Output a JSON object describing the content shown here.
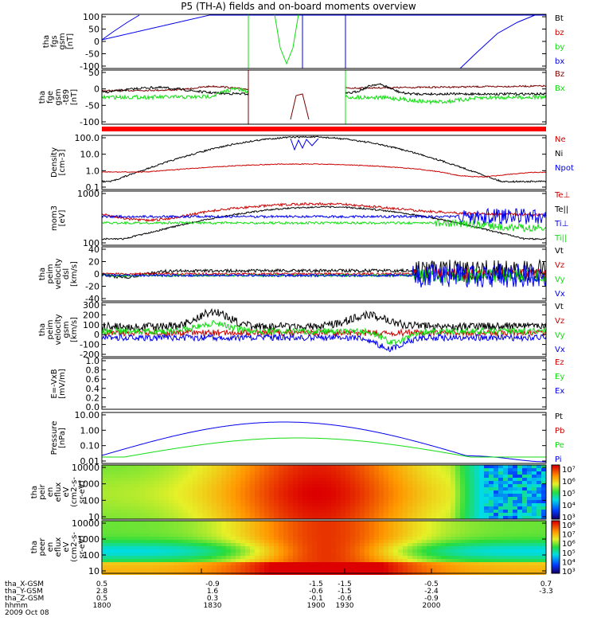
{
  "title": "P5 (TH-A) fields and on-board moments overview",
  "colors": {
    "black": "#000000",
    "red": "#cc0000",
    "green": "#11dd11",
    "blue": "#0000ee",
    "darkred": "#770000"
  },
  "chart_data": [
    {
      "panel": 1,
      "type": "line",
      "ylabel_lines": [
        "tha",
        "fgs",
        "gsm",
        "[nT]"
      ],
      "yticks": [
        "100",
        "50",
        "0",
        "-50",
        "-100"
      ],
      "ylim": [
        -100,
        100
      ],
      "legend": [
        {
          "name": "Bt",
          "color": "black"
        },
        {
          "name": "bz",
          "color": "red"
        },
        {
          "name": "by",
          "color": "green"
        },
        {
          "name": "bx",
          "color": "blue"
        }
      ]
    },
    {
      "panel": 2,
      "type": "line",
      "ylabel_lines": [
        "tha",
        "fge",
        "gsm",
        "-t89",
        "[nT]"
      ],
      "yticks": [
        "50",
        "0",
        "-50",
        "-100"
      ],
      "ylim": [
        -120,
        80
      ],
      "legend": [
        {
          "name": "Bz",
          "color": "darkred"
        },
        {
          "name": "Bx",
          "color": "green"
        }
      ]
    },
    {
      "panel": 3,
      "type": "line",
      "yscale": "log",
      "ylabel_lines": [
        "Density",
        "[cm-3]"
      ],
      "yticks": [
        "100.0",
        "10.0",
        "1.0",
        "0.1"
      ],
      "ylim": [
        0.06,
        250
      ],
      "legend": [
        {
          "name": "Ne",
          "color": "red"
        },
        {
          "name": "Ni",
          "color": "black"
        },
        {
          "name": "Npot",
          "color": "blue"
        }
      ]
    },
    {
      "panel": 4,
      "type": "line",
      "yscale": "log",
      "ylabel_lines": [
        "mom3",
        "[eV]"
      ],
      "yticks": [
        "1000",
        "100"
      ],
      "ylim": [
        100,
        1500
      ],
      "legend": [
        {
          "name": "Te⊥",
          "color": "red"
        },
        {
          "name": "Te||",
          "color": "black"
        },
        {
          "name": "Ti⊥",
          "color": "blue"
        },
        {
          "name": "Ti||",
          "color": "green"
        }
      ]
    },
    {
      "panel": 5,
      "type": "line",
      "ylabel_lines": [
        "tha",
        "peim",
        "velocity",
        "dsl",
        "[km/s]"
      ],
      "yticks": [
        "40",
        "20",
        "0",
        "-20",
        "-40"
      ],
      "ylim": [
        -40,
        40
      ],
      "legend": [
        {
          "name": "Vt",
          "color": "black"
        },
        {
          "name": "Vz",
          "color": "red"
        },
        {
          "name": "Vy",
          "color": "green"
        },
        {
          "name": "Vx",
          "color": "blue"
        }
      ]
    },
    {
      "panel": 6,
      "type": "line",
      "ylabel_lines": [
        "tha",
        "peim",
        "velocity",
        "gsm",
        "[km/s]"
      ],
      "yticks": [
        "300",
        "200",
        "100",
        "0",
        "-100",
        "-200"
      ],
      "ylim": [
        -200,
        300
      ],
      "legend": [
        {
          "name": "Vt",
          "color": "black"
        },
        {
          "name": "Vz",
          "color": "red"
        },
        {
          "name": "Vy",
          "color": "green"
        },
        {
          "name": "Vx",
          "color": "blue"
        }
      ]
    },
    {
      "panel": 7,
      "type": "line",
      "ylabel_lines": [
        "E=-VxB",
        "[mV/m]"
      ],
      "yticks": [
        "1.0",
        "0.8",
        "0.6",
        "0.4",
        "0.2",
        "0.0"
      ],
      "ylim": [
        0,
        1
      ],
      "legend": [
        {
          "name": "Ez",
          "color": "red"
        },
        {
          "name": "Ey",
          "color": "green"
        },
        {
          "name": "Ex",
          "color": "blue"
        }
      ]
    },
    {
      "panel": 8,
      "type": "line",
      "yscale": "log",
      "ylabel_lines": [
        "Pressure",
        "[nPa]"
      ],
      "yticks": [
        "10.00",
        "1.00",
        "0.10",
        "0.01"
      ],
      "ylim": [
        0.003,
        40
      ],
      "legend": [
        {
          "name": "Pt",
          "color": "black"
        },
        {
          "name": "Pb",
          "color": "red"
        },
        {
          "name": "Pe",
          "color": "green"
        },
        {
          "name": "Pi",
          "color": "blue"
        }
      ]
    },
    {
      "panel": 9,
      "type": "heatmap",
      "yscale": "log",
      "ylabel_lines": [
        "tha",
        "peir",
        "en",
        "eflux",
        "eV",
        "(cm2-s-",
        "sr-eV)"
      ],
      "yticks": [
        "10000",
        "1000",
        "100",
        "10"
      ],
      "colorbar": {
        "labels": [
          "10⁷",
          "10⁶",
          "10⁵",
          "10⁴",
          "10³"
        ]
      }
    },
    {
      "panel": 10,
      "type": "heatmap",
      "yscale": "log",
      "ylabel_lines": [
        "tha",
        "peer",
        "en",
        "eflux",
        "eV",
        "(cm2-s-",
        "sr-eV)"
      ],
      "yticks": [
        "10000",
        "1000",
        "100",
        "10"
      ],
      "colorbar": {
        "labels": [
          "10⁸",
          "10⁷",
          "10⁶",
          "10⁵",
          "10⁴",
          "10³"
        ]
      }
    }
  ],
  "xaxis": {
    "rows": [
      {
        "label": "tha_X-GSM",
        "values": [
          "0.5",
          "-0.9",
          "-1.5",
          "-1.5",
          "-0.5",
          "0.7"
        ]
      },
      {
        "label": "tha_Y-GSM",
        "values": [
          "2.8",
          "1.6",
          "-0.6",
          "-1.5",
          "-2.4",
          "-3.3"
        ]
      },
      {
        "label": "tha_Z-GSM",
        "values": [
          "0.5",
          "0.3",
          "-0.1",
          "-0.6",
          "-0.9",
          ""
        ]
      },
      {
        "label": "hhmm",
        "values": [
          "1800",
          "1830",
          "1900",
          "1930",
          "2000",
          ""
        ]
      }
    ],
    "date": "2009 Oct 08"
  }
}
